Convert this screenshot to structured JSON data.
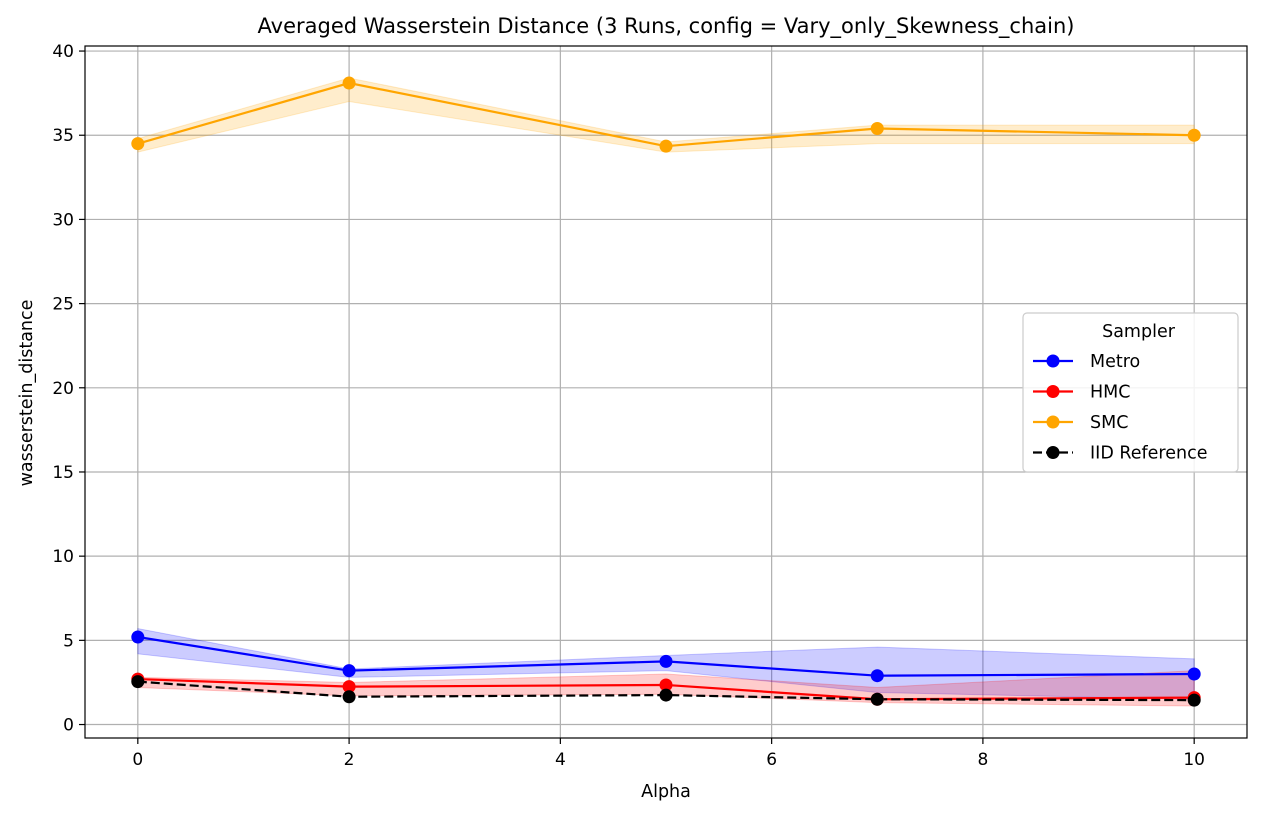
{
  "chart_data": {
    "type": "line",
    "title": "Averaged Wasserstein Distance (3 Runs, config = Vary_only_Skewness_chain)",
    "xlabel": "Alpha",
    "ylabel": "wasserstein_distance",
    "xlim": [
      -0.5,
      10.5
    ],
    "ylim": [
      -0.8,
      40.3
    ],
    "xticks": [
      0,
      2,
      4,
      6,
      8,
      10
    ],
    "yticks": [
      0,
      5,
      10,
      15,
      20,
      25,
      30,
      35,
      40
    ],
    "grid": true,
    "legend": {
      "title": "Sampler",
      "placement": "center-right"
    },
    "x": [
      0,
      2,
      5,
      7,
      10
    ],
    "series": [
      {
        "name": "Metro",
        "color": "#0000ff",
        "style": "solid",
        "values": [
          5.2,
          3.2,
          3.75,
          2.9,
          3.0
        ],
        "lower": [
          4.2,
          2.8,
          3.2,
          1.9,
          1.5
        ],
        "upper": [
          5.7,
          3.3,
          4.1,
          4.6,
          3.9
        ]
      },
      {
        "name": "HMC",
        "color": "#ff0000",
        "style": "solid",
        "values": [
          2.7,
          2.25,
          2.35,
          1.5,
          1.6
        ],
        "lower": [
          2.2,
          1.7,
          1.8,
          1.3,
          1.1
        ],
        "upper": [
          2.8,
          2.5,
          3.0,
          2.2,
          3.2
        ]
      },
      {
        "name": "SMC",
        "color": "#ffa500",
        "style": "solid",
        "values": [
          34.5,
          38.1,
          34.35,
          35.4,
          35.0
        ],
        "lower": [
          34.0,
          37.0,
          34.0,
          34.5,
          34.5
        ],
        "upper": [
          34.8,
          38.4,
          34.6,
          35.6,
          35.6
        ]
      },
      {
        "name": "IID Reference",
        "color": "#000000",
        "style": "dashed",
        "values": [
          2.55,
          1.65,
          1.75,
          1.5,
          1.45
        ]
      }
    ]
  }
}
